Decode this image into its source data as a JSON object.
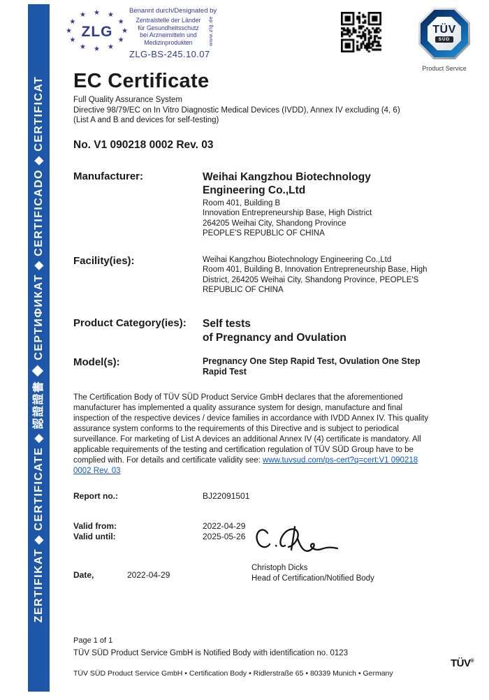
{
  "sidebar": {
    "text": "ZERTIFIKAT  ◆  CERTIFICATE  ◆  認證證書  ◆  СЕРТИФИКАТ  ◆  CERTIFICADO  ◆  CERTIFICAT"
  },
  "header": {
    "zlg": {
      "logo_text": "ZLG",
      "designated_by": "Benannt durch/Designated by",
      "body_lines": [
        "Zentralstelle der Länder",
        "für Gesundheitsschutz",
        "bei Arzneimitteln und",
        "Medizinprodukten"
      ],
      "website": "www.zlg.de",
      "reference": "ZLG-BS-245.10.07"
    },
    "tuv_logo": {
      "line1": "TÜV",
      "line2": "SÜD",
      "caption": "Product Service"
    }
  },
  "title": "EC Certificate",
  "subtitle_lines": [
    "Full Quality Assurance System",
    "Directive 98/79/EC on In Vitro Diagnostic Medical Devices (IVDD), Annex IV excluding (4, 6)",
    "(List A and B and devices for self-testing)"
  ],
  "certificate_no": "No. V1 090218 0002 Rev. 03",
  "manufacturer": {
    "label": "Manufacturer:",
    "name_lines": [
      "Weihai Kangzhou Biotechnology",
      "Engineering Co.,Ltd"
    ],
    "address_lines": [
      "Room 401, Building B",
      "Innovation Entrepreneurship Base, High District",
      "264205 Weihai City, Shandong Province",
      "PEOPLE'S REPUBLIC OF CHINA"
    ]
  },
  "facility": {
    "label": "Facility(ies):",
    "lines": [
      "Weihai Kangzhou Biotechnology Engineering Co.,Ltd",
      "Room 401, Building B, Innovation Entrepreneurship Base, High",
      "District, 264205 Weihai City, Shandong Province, PEOPLE'S",
      "REPUBLIC OF CHINA"
    ]
  },
  "product_category": {
    "label": "Product Category(ies):",
    "value_lines": [
      "Self tests",
      "of Pregnancy and Ovulation"
    ]
  },
  "models": {
    "label": "Model(s):",
    "value": "Pregnancy One Step Rapid Test, Ovulation One Step Rapid Test"
  },
  "declaration": {
    "text": "The Certification Body of TÜV SÜD Product Service GmbH declares that the aforementioned manufacturer has implemented a quality assurance system for design, manufacture and final inspection of the respective devices / device families in accordance with IVDD Annex IV. This quality assurance system conforms to the requirements of this Directive and is subject to periodical surveillance. For marketing of List A devices an additional Annex IV (4) certificate is mandatory. All applicable requirements of the testing and certification regulation of TÜV SÜD Group have to be complied with. For details and certificate validity see: ",
    "link": "www.tuvsud.com/ps-cert?q=cert:V1 090218 0002 Rev. 03"
  },
  "report": {
    "label": "Report no.:",
    "value": "BJ22091501"
  },
  "valid_from": {
    "label": "Valid from:",
    "value": "2022-04-29"
  },
  "valid_until": {
    "label": "Valid until:",
    "value": "2025-05-26"
  },
  "date": {
    "label": "Date,",
    "value": "2022-04-29"
  },
  "signature": {
    "name": "Christoph Dicks",
    "title": "Head of Certification/Notified Body"
  },
  "footer": {
    "page": "Page 1 of 1",
    "notified_body": "TÜV SÜD Product Service GmbH is Notified Body with identification no. 0123",
    "address": "TÜV SÜD Product Service GmbH • Certification Body • Ridlerstraße 65 • 80339 Munich • Germany",
    "tuv_mark": "TÜV",
    "registered": "®"
  },
  "colors": {
    "band_blue": "#1e57a8",
    "zlg_blue": "#343a96",
    "link_blue": "#1155cc",
    "tuv_dark_blue": "#0d4e96"
  }
}
